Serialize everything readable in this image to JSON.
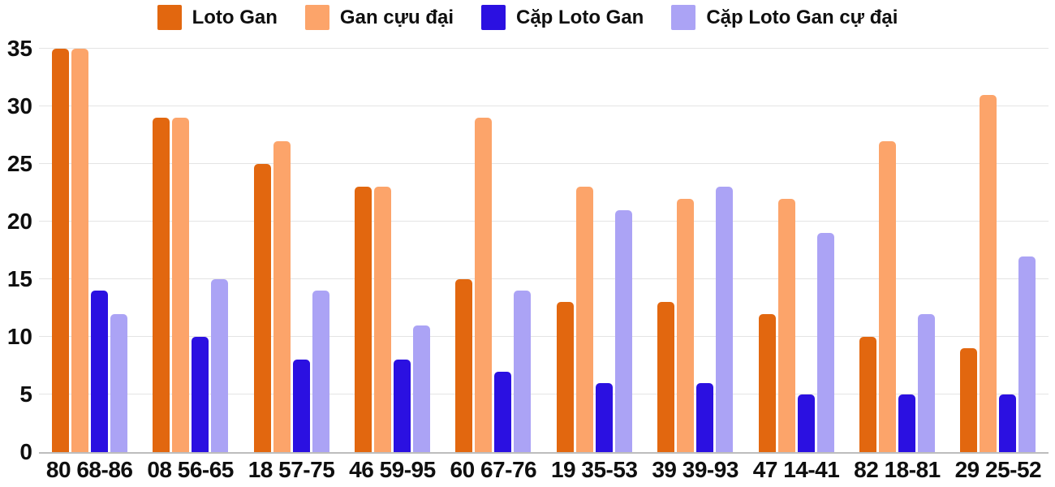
{
  "chart_data": {
    "type": "bar",
    "title": "",
    "xlabel": "",
    "ylabel": "",
    "categories": [
      "80 68-86",
      "08 56-65",
      "18 57-75",
      "46 59-95",
      "60 67-76",
      "19 35-53",
      "39 39-93",
      "47 14-41",
      "82 18-81",
      "29 25-52"
    ],
    "series": [
      {
        "name": "Loto Gan",
        "color": "#E2670F",
        "values": [
          35,
          29,
          25,
          23,
          15,
          13,
          13,
          12,
          10,
          9
        ]
      },
      {
        "name": "Gan cựu đại",
        "color": "#FCA46A",
        "values": [
          35,
          29,
          27,
          23,
          29,
          23,
          22,
          22,
          27,
          31
        ]
      },
      {
        "name": "Cặp Loto Gan",
        "color": "#2B10E1",
        "values": [
          14,
          10,
          8,
          8,
          7,
          6,
          6,
          5,
          5,
          5
        ]
      },
      {
        "name": "Cặp Loto Gan cự đại",
        "color": "#ABA3F5",
        "values": [
          12,
          15,
          14,
          11,
          14,
          21,
          23,
          19,
          12,
          17
        ]
      }
    ],
    "ylim": [
      0,
      35
    ],
    "ytick_step": 5,
    "ytick_labels": [
      "0",
      "5",
      "10",
      "15",
      "20",
      "25",
      "30",
      "35"
    ],
    "grid": true,
    "legend_position": "top"
  },
  "colors": {
    "background": "#ffffff",
    "gridline": "#e4e4e4",
    "axis_line": "#bdbdbd",
    "text": "#0f0f0f"
  }
}
